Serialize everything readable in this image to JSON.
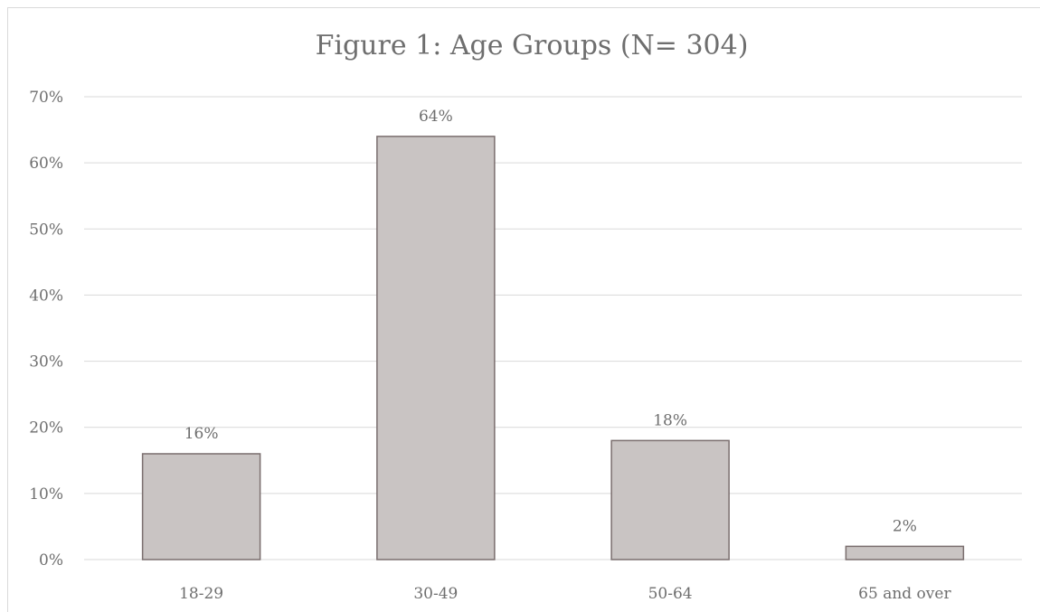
{
  "chart_data": {
    "type": "bar",
    "title": "Figure 1: Age Groups (N= 304)",
    "categories": [
      "18-29",
      "30-49",
      "50-64",
      "65 and over"
    ],
    "values": [
      16,
      64,
      18,
      2
    ],
    "data_labels": [
      "16%",
      "64%",
      "18%",
      "2%"
    ],
    "yticks": [
      "0%",
      "10%",
      "20%",
      "30%",
      "40%",
      "50%",
      "60%",
      "70%"
    ],
    "ylim": [
      0,
      70
    ],
    "xlabel": "",
    "ylabel": "",
    "grid": true,
    "legend": "none",
    "bar_color": "#c9c4c3",
    "bar_edge_color": "#7a6e6e"
  }
}
